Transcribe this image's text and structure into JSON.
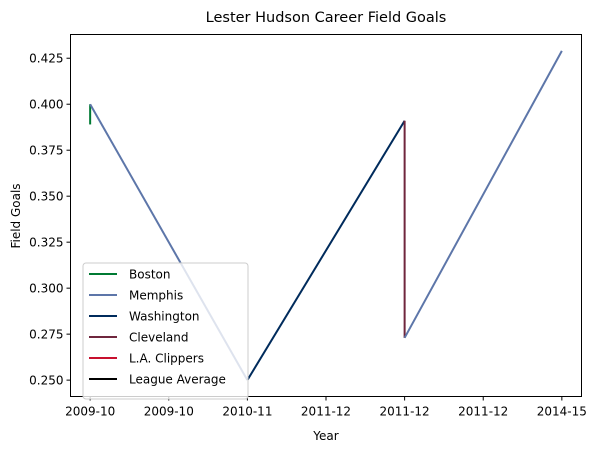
{
  "chart_data": {
    "type": "line",
    "title": "Lester Hudson Career Field Goals",
    "xlabel": "Year",
    "ylabel": "Field Goals",
    "x_tick_labels": [
      "2009-10",
      "2009-10",
      "2010-11",
      "2011-12",
      "2011-12",
      "2011-12",
      "2014-15"
    ],
    "xlim": [
      -0.25,
      6.25
    ],
    "ylim": [
      0.2411,
      0.4379
    ],
    "y_ticks": [
      0.25,
      0.275,
      0.3,
      0.325,
      0.35,
      0.375,
      0.4,
      0.425
    ],
    "y_tick_labels": [
      "0.250",
      "0.275",
      "0.300",
      "0.325",
      "0.350",
      "0.375",
      "0.400",
      "0.425"
    ],
    "grid": false,
    "legend_position": "lower left",
    "series": [
      {
        "name": "Boston",
        "color": "#007A33",
        "x": [
          0,
          0
        ],
        "y": [
          0.389,
          0.4
        ]
      },
      {
        "name": "Memphis",
        "color": "#5D76A9",
        "x": [
          0,
          2
        ],
        "y": [
          0.4,
          0.25
        ]
      },
      {
        "name": "Washington",
        "color": "#002B5C",
        "x": [
          2,
          4
        ],
        "y": [
          0.25,
          0.391
        ]
      },
      {
        "name": "Cleveland",
        "color": "#6F263D",
        "x": [
          4,
          4
        ],
        "y": [
          0.391,
          0.273
        ]
      },
      {
        "name": "Memphis",
        "color": "#5D76A9",
        "x": [
          4,
          6
        ],
        "y": [
          0.273,
          0.429
        ]
      },
      {
        "name": "L.A. Clippers",
        "color": "#C8102E",
        "x": [],
        "y": []
      },
      {
        "name": "League Average",
        "color": "#000000",
        "x": [],
        "y": []
      }
    ],
    "legend": [
      {
        "label": "Boston",
        "color": "#007A33"
      },
      {
        "label": "Memphis",
        "color": "#5D76A9"
      },
      {
        "label": "Washington",
        "color": "#002B5C"
      },
      {
        "label": "Cleveland",
        "color": "#6F263D"
      },
      {
        "label": "L.A. Clippers",
        "color": "#C8102E"
      },
      {
        "label": "League Average",
        "color": "#000000"
      }
    ]
  }
}
